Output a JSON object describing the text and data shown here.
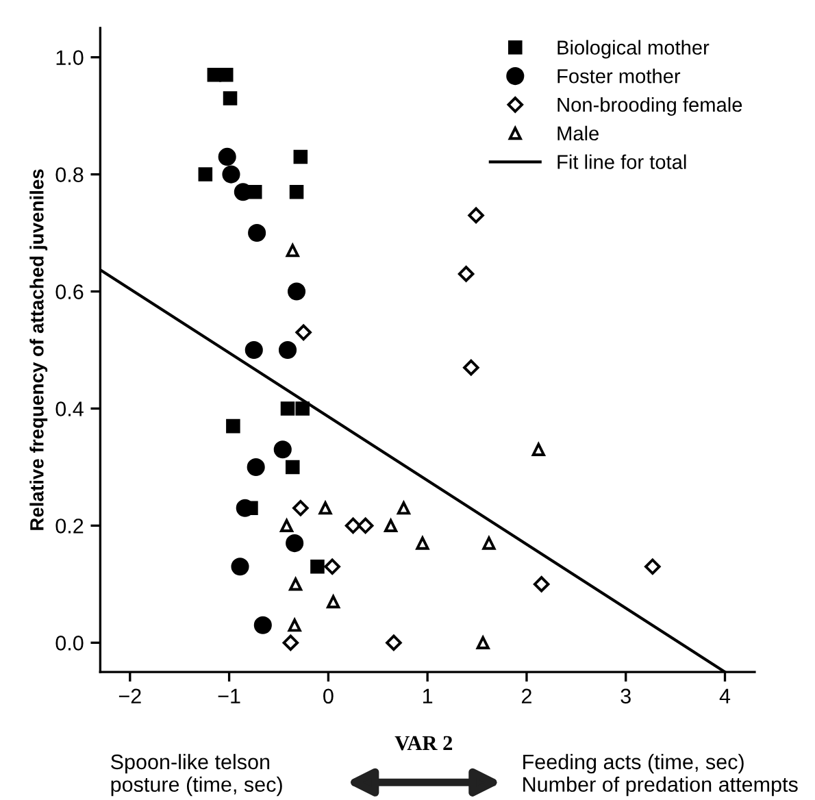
{
  "chart_data": {
    "type": "scatter",
    "ylabel": "Relative frequency of attached juveniles",
    "xlim": [
      -2.3,
      4.3
    ],
    "ylim": [
      -0.05,
      1.05
    ],
    "xticks": [
      {
        "value": -2,
        "label": "−2"
      },
      {
        "value": -1,
        "label": "−1"
      },
      0,
      1,
      2,
      3,
      4
    ],
    "yticks": [
      {
        "value": 0,
        "label": "0.0"
      },
      {
        "value": 0.2,
        "label": "0.2"
      },
      {
        "value": 0.4,
        "label": "0.4"
      },
      {
        "value": 0.6,
        "label": "0.6"
      },
      {
        "value": 0.8,
        "label": "0.8"
      },
      {
        "value": 1.0,
        "label": "1.0"
      }
    ],
    "grid": false,
    "legend": "top right",
    "series": [
      {
        "name": "Biological mother",
        "color": "#000000",
        "marker": "square",
        "x": [
          -1.15,
          -1.03,
          -0.99,
          -0.28,
          -1.24,
          -0.74,
          -0.32,
          -0.41,
          -0.26,
          -0.96,
          -0.36,
          -0.78,
          -0.11
        ],
        "values": [
          0.97,
          0.97,
          0.93,
          0.83,
          0.8,
          0.77,
          0.77,
          0.4,
          0.4,
          0.37,
          0.3,
          0.23,
          0.13
        ]
      },
      {
        "name": "Foster mother",
        "color": "#000000",
        "marker": "circle",
        "x": [
          -1.02,
          -0.98,
          -0.86,
          -0.72,
          -0.32,
          -0.75,
          -0.41,
          -0.46,
          -0.73,
          -0.84,
          -0.34,
          -0.89,
          -0.66
        ],
        "values": [
          0.83,
          0.8,
          0.77,
          0.7,
          0.6,
          0.5,
          0.5,
          0.33,
          0.3,
          0.23,
          0.17,
          0.13,
          0.03
        ]
      },
      {
        "name": "Non-brooding female",
        "color": "#ffffff",
        "marker": "diamond",
        "x": [
          1.49,
          1.39,
          -0.25,
          1.44,
          -0.28,
          0.25,
          0.375,
          0.04,
          3.27,
          2.15,
          -0.38,
          0.66
        ],
        "values": [
          0.73,
          0.63,
          0.53,
          0.47,
          0.23,
          0.2,
          0.2,
          0.13,
          0.13,
          0.1,
          0.0,
          0.0
        ]
      },
      {
        "name": "Male",
        "color": "#ffffff",
        "marker": "triangle",
        "x": [
          -0.36,
          2.12,
          -0.03,
          0.76,
          -0.42,
          0.63,
          0.95,
          1.62,
          -0.33,
          0.05,
          -0.34,
          1.56
        ],
        "values": [
          0.67,
          0.33,
          0.23,
          0.23,
          0.2,
          0.2,
          0.17,
          0.17,
          0.1,
          0.07,
          0.03,
          0.0
        ]
      },
      {
        "name": "Fit line for total",
        "type": "line",
        "color": "#000000",
        "line_style": "solid",
        "x": [
          -2.3,
          4.0
        ],
        "values": [
          0.637,
          -0.05
        ]
      }
    ],
    "annotations": [
      "Spoon-like telson\nposture (time, sec)",
      "VAR 2",
      "Feeding acts (time, sec)\nNumber of predation attempts"
    ]
  }
}
